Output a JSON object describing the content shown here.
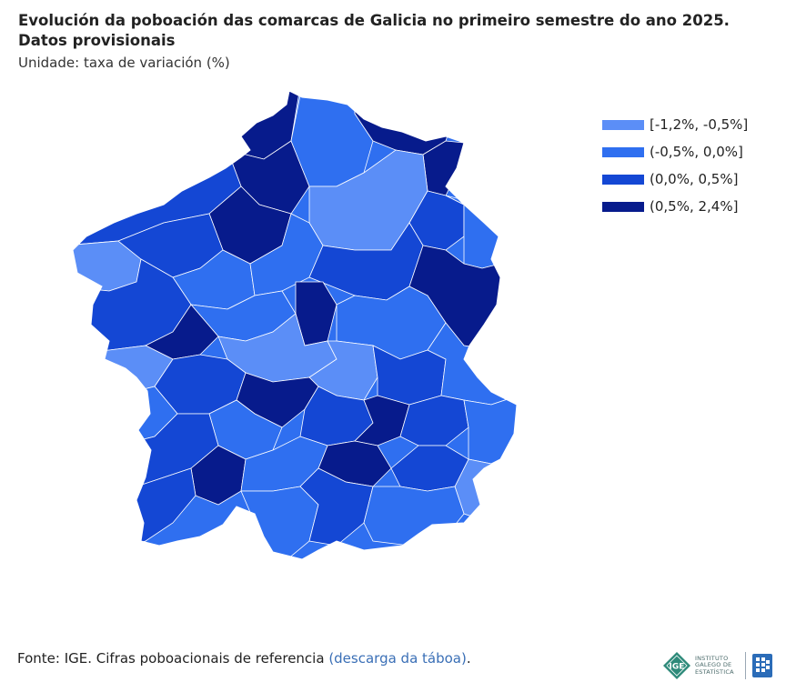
{
  "header": {
    "title_line1": "Evolución da poboación das comarcas de Galicia no primeiro semestre do ano 2025.",
    "title_line2": "Datos provisionais",
    "subtitle": "Unidade: taxa de variación (%)"
  },
  "legend": {
    "items": [
      {
        "label": "[-1,2%, -0,5%]",
        "color": "#5b8ef7"
      },
      {
        "label": "(-0,5%, 0,0%]",
        "color": "#2f6ff0"
      },
      {
        "label": "(0,0%, 0,5%]",
        "color": "#1447d4"
      },
      {
        "label": "(0,5%, 2,4%]",
        "color": "#071b8c"
      }
    ]
  },
  "footer": {
    "source_text": "Fonte: IGE. Cifras poboacionais de referencia ",
    "link_text": "(descarga da táboa)",
    "end_text": "."
  },
  "logos": {
    "ige_line1": "INSTITUTO",
    "ige_line2": "GALEGO DE",
    "ige_line3": "ESTATÍSTICA",
    "ige_color": "#2e8a7a"
  }
}
